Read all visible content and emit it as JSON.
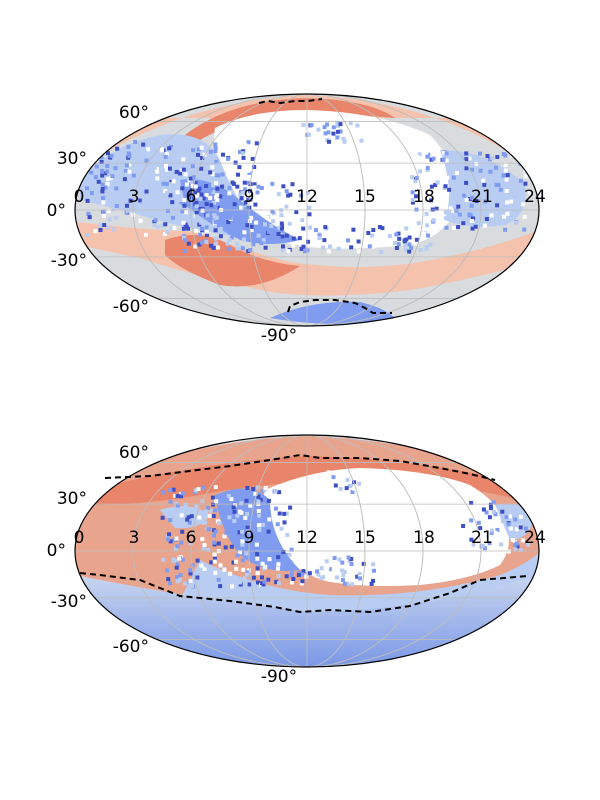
{
  "maps": [
    {
      "id": "top",
      "ra_labels": [
        "0",
        "3",
        "6",
        "9",
        "12",
        "15",
        "18",
        "21",
        "24"
      ],
      "dec_labels": [
        "60°",
        "30°",
        "0°",
        "-30°",
        "-60°",
        "-90°"
      ],
      "colors": {
        "warm": "#e9856b",
        "pale_warm": "#f4c2ad",
        "neutral": "#d9dcdf",
        "pale_cool": "#b9cdf3",
        "cool": "#7f9cf0",
        "deep_cool": "#3e4fc6",
        "empty": "#ffffff"
      }
    },
    {
      "id": "bottom",
      "ra_labels": [
        "0",
        "3",
        "6",
        "9",
        "12",
        "15",
        "18",
        "21",
        "24"
      ],
      "dec_labels": [
        "60°",
        "30°",
        "0°",
        "-30°",
        "-60°",
        "-90°"
      ],
      "colors": {
        "warm": "#e9856b",
        "pale_warm": "#f4c2ad",
        "neutral": "#d9dcdf",
        "pale_cool": "#b9cdf3",
        "cool": "#7f9cf0",
        "deep_cool": "#3e4fc6",
        "empty": "#ffffff"
      }
    }
  ]
}
